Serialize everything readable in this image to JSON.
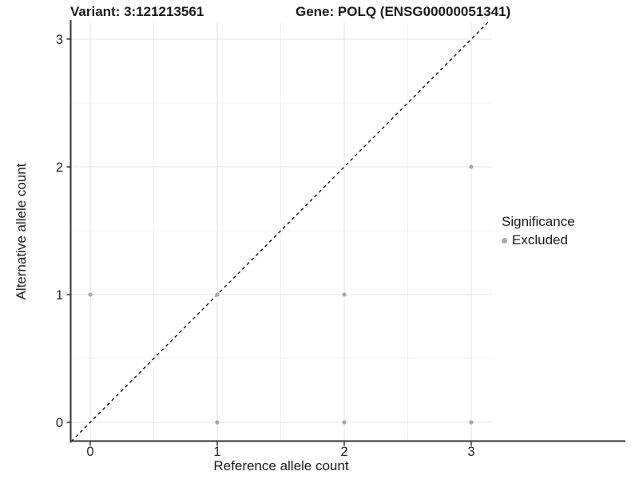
{
  "titles": {
    "variant": "Variant: 3:121213561",
    "gene": "Gene: POLQ (ENSG00000051341)"
  },
  "axes": {
    "x_label": "Reference allele count",
    "y_label": "Alternative allele count",
    "x_ticks": [
      "0",
      "1",
      "2",
      "3"
    ],
    "y_ticks": [
      "0",
      "1",
      "2",
      "3"
    ]
  },
  "legend": {
    "title": "Significance",
    "items": [
      {
        "label": "Excluded",
        "color": "#a8a8a8"
      }
    ]
  },
  "palette": {
    "axis_line": "#333333",
    "tick_text": "#262626",
    "grid_major": "#e3e3e3",
    "grid_minor": "#f1f1f1",
    "identity_line": "#000000",
    "background": "#ffffff"
  },
  "chart_data": {
    "type": "scatter",
    "title": "Variant: 3:121213561 — Gene: POLQ (ENSG00000051341)",
    "xlabel": "Reference allele count",
    "ylabel": "Alternative allele count",
    "xlim": [
      -0.15,
      3.16
    ],
    "ylim": [
      -0.15,
      3.13
    ],
    "x_ticks": [
      0,
      1,
      2,
      3
    ],
    "y_ticks": [
      0,
      1,
      2,
      3
    ],
    "grid": true,
    "legend_position": "right",
    "legend_title": "Significance",
    "series": [
      {
        "name": "Excluded",
        "color": "#a8a8a8",
        "point_radius": 2.6,
        "points": [
          [
            0,
            1
          ],
          [
            1,
            0
          ],
          [
            1,
            1
          ],
          [
            2,
            0
          ],
          [
            2,
            1
          ],
          [
            3,
            0
          ],
          [
            3,
            2
          ]
        ]
      }
    ],
    "reference_line": {
      "type": "identity",
      "slope": 1,
      "intercept": 0,
      "style": "dashed",
      "color": "#000000"
    }
  }
}
